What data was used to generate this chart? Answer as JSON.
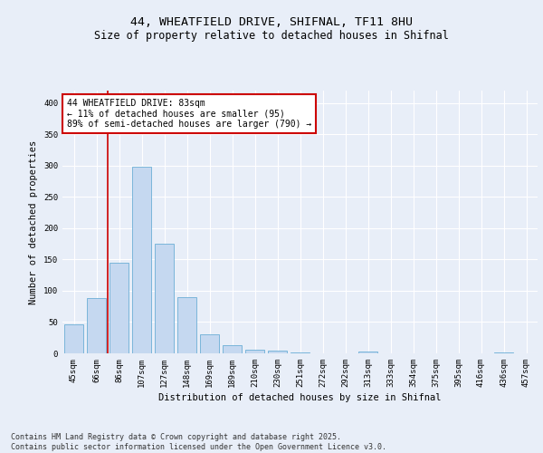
{
  "title_line1": "44, WHEATFIELD DRIVE, SHIFNAL, TF11 8HU",
  "title_line2": "Size of property relative to detached houses in Shifnal",
  "xlabel": "Distribution of detached houses by size in Shifnal",
  "ylabel": "Number of detached properties",
  "categories": [
    "45sqm",
    "66sqm",
    "86sqm",
    "107sqm",
    "127sqm",
    "148sqm",
    "169sqm",
    "189sqm",
    "210sqm",
    "230sqm",
    "251sqm",
    "272sqm",
    "292sqm",
    "313sqm",
    "333sqm",
    "354sqm",
    "375sqm",
    "395sqm",
    "416sqm",
    "436sqm",
    "457sqm"
  ],
  "values": [
    47,
    88,
    145,
    298,
    175,
    90,
    30,
    13,
    6,
    4,
    2,
    0,
    0,
    3,
    0,
    0,
    0,
    0,
    0,
    2,
    0
  ],
  "bar_color": "#c5d8f0",
  "bar_edge_color": "#6baed6",
  "vline_x": 1.5,
  "vline_color": "#cc0000",
  "annotation_text": "44 WHEATFIELD DRIVE: 83sqm\n← 11% of detached houses are smaller (95)\n89% of semi-detached houses are larger (790) →",
  "annotation_box_color": "#ffffff",
  "annotation_box_edge": "#cc0000",
  "ylim": [
    0,
    420
  ],
  "yticks": [
    0,
    50,
    100,
    150,
    200,
    250,
    300,
    350,
    400
  ],
  "bg_color": "#e8eef8",
  "plot_bg_color": "#e8eef8",
  "grid_color": "#ffffff",
  "footer_text": "Contains HM Land Registry data © Crown copyright and database right 2025.\nContains public sector information licensed under the Open Government Licence v3.0.",
  "title_fontsize": 9.5,
  "subtitle_fontsize": 8.5,
  "axis_label_fontsize": 7.5,
  "tick_fontsize": 6.5,
  "annotation_fontsize": 7,
  "footer_fontsize": 6
}
